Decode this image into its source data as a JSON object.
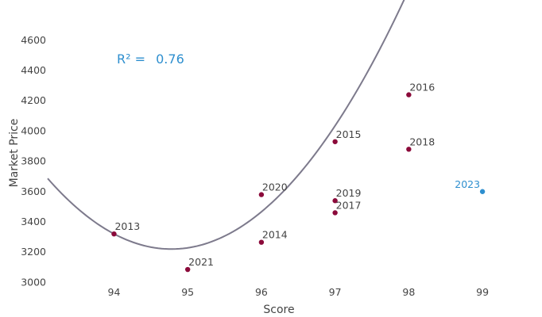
{
  "chart_data": {
    "type": "scatter",
    "title": "",
    "xlabel": "Score",
    "ylabel": "Market Price",
    "xlim": [
      93.1,
      99.7
    ],
    "ylim": [
      2970,
      4720
    ],
    "xticks": [
      94,
      95,
      96,
      97,
      98,
      99
    ],
    "yticks": [
      3000,
      3200,
      3400,
      3600,
      3800,
      4000,
      4200,
      4400,
      4600
    ],
    "grid": false,
    "series": [
      {
        "color": "#8b0a3a",
        "points": [
          {
            "x": 94,
            "y": 3320,
            "label": "2013"
          },
          {
            "x": 96,
            "y": 3265,
            "label": "2014"
          },
          {
            "x": 97,
            "y": 3930,
            "label": "2015"
          },
          {
            "x": 98,
            "y": 4240,
            "label": "2016"
          },
          {
            "x": 97,
            "y": 3460,
            "label": "2017"
          },
          {
            "x": 98,
            "y": 3880,
            "label": "2018"
          },
          {
            "x": 97,
            "y": 3540,
            "label": "2019"
          },
          {
            "x": 96,
            "y": 3580,
            "label": "2020"
          },
          {
            "x": 95,
            "y": 3085,
            "label": "2021"
          }
        ]
      },
      {
        "color": "#2e8fcf",
        "points": [
          {
            "x": 99,
            "y": 3600,
            "label": "2023"
          }
        ]
      }
    ],
    "fit": {
      "type": "quadratic",
      "color": "#7d7a8c",
      "vertex_x": 94.78,
      "vertex_y": 3220,
      "a": 165.4,
      "x_range": [
        93.1,
        98.9
      ]
    },
    "annotation": {
      "r2_label": "R² =",
      "r2_value": "0.76",
      "color": "#2e8fcf"
    }
  }
}
